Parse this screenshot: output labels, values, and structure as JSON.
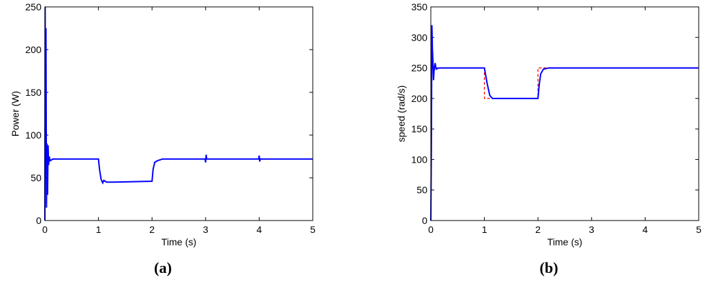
{
  "chart_data": [
    {
      "type": "line",
      "caption": "(a)",
      "xlabel": "Time (s)",
      "ylabel": "Power (W)",
      "xlim": [
        0,
        5
      ],
      "xticks": [
        0,
        1,
        2,
        3,
        4,
        5
      ],
      "ylim": [
        0,
        250
      ],
      "yticks": [
        0,
        50,
        100,
        150,
        200,
        250
      ],
      "series": [
        {
          "color": "#0000ff",
          "style": "solid",
          "x": [
            0,
            0.005,
            0.01,
            0.02,
            0.03,
            0.04,
            0.05,
            0.06,
            0.07,
            0.08,
            0.1,
            0.15,
            0.3,
            1.0,
            1.02,
            1.05,
            1.08,
            1.1,
            1.15,
            1.3,
            2.0,
            2.02,
            2.05,
            2.1,
            2.2,
            2.99,
            3.0,
            3.01,
            3.02,
            3.99,
            4.0,
            4.01,
            4.02,
            5.0
          ],
          "values": [
            0,
            250,
            80,
            225,
            15,
            90,
            30,
            88,
            65,
            75,
            70,
            72,
            72,
            72,
            60,
            48,
            44,
            47,
            45,
            45,
            46,
            60,
            68,
            70,
            72,
            72,
            68,
            77,
            72,
            72,
            76,
            69,
            72,
            72
          ]
        }
      ]
    },
    {
      "type": "line",
      "caption": "(b)",
      "xlabel": "Time (s)",
      "ylabel": "speed (rad/s)",
      "xlim": [
        0,
        5
      ],
      "xticks": [
        0,
        1,
        2,
        3,
        4,
        5
      ],
      "ylim": [
        0,
        350
      ],
      "yticks": [
        0,
        50,
        100,
        150,
        200,
        250,
        300,
        350
      ],
      "series": [
        {
          "color": "#ff0000",
          "style": "dashed",
          "x": [
            0,
            1,
            1,
            2,
            2,
            5
          ],
          "values": [
            250,
            250,
            200,
            200,
            250,
            250
          ]
        },
        {
          "color": "#0000ff",
          "style": "solid",
          "x": [
            0,
            0.01,
            0.02,
            0.03,
            0.04,
            0.05,
            0.06,
            0.08,
            0.1,
            0.15,
            0.3,
            1.0,
            1.05,
            1.1,
            1.15,
            1.3,
            2.0,
            2.02,
            2.05,
            2.1,
            2.2,
            5.0
          ],
          "values": [
            0,
            120,
            320,
            280,
            260,
            230,
            245,
            258,
            248,
            250,
            250,
            250,
            225,
            205,
            200,
            200,
            200,
            220,
            240,
            248,
            250,
            250
          ]
        }
      ]
    }
  ]
}
